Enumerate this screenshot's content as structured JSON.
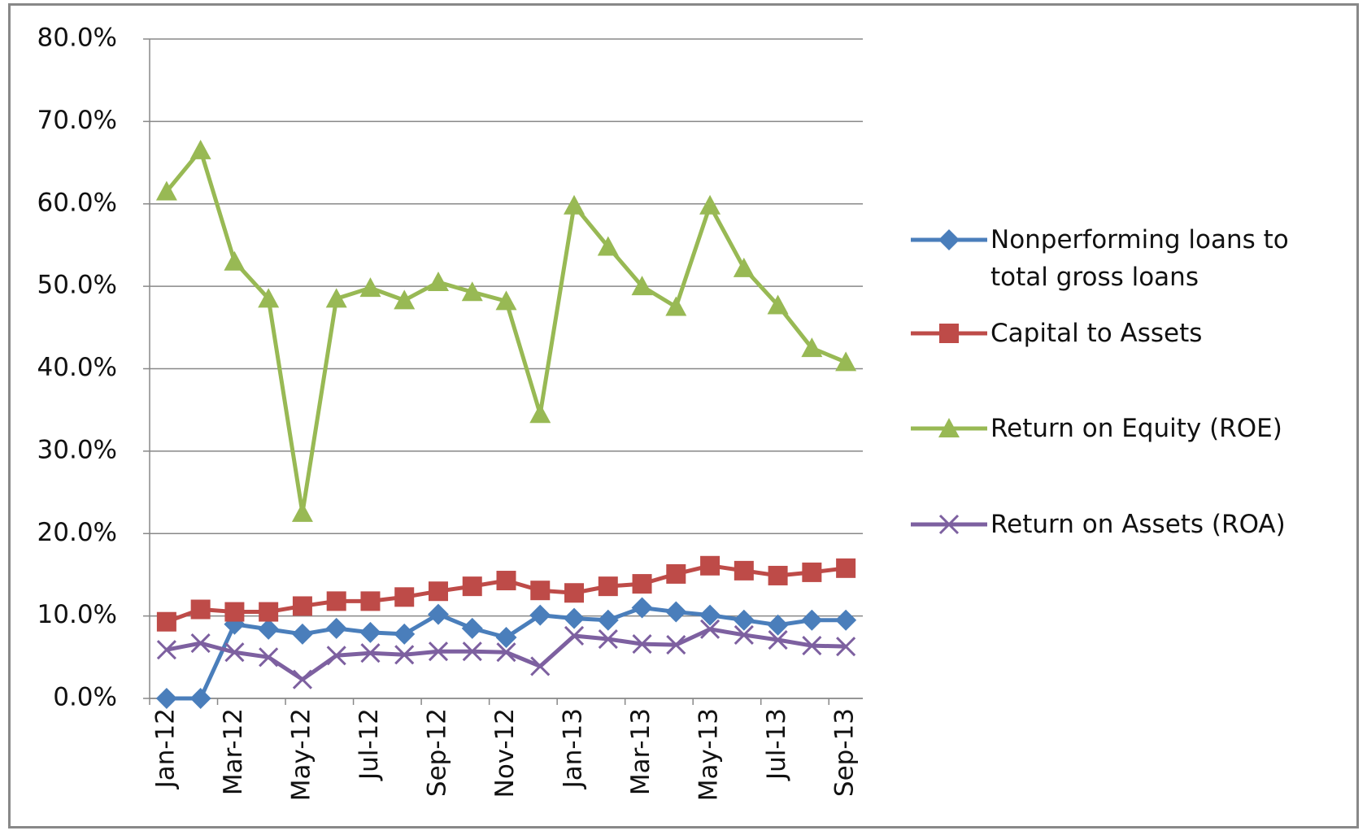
{
  "chart_data": {
    "type": "line",
    "categories": [
      "Jan-12",
      null,
      "Mar-12",
      null,
      "May-12",
      null,
      "Jul-12",
      null,
      "Sep-12",
      null,
      "Nov-12",
      null,
      "Jan-13",
      null,
      "Mar-13",
      null,
      "May-13",
      null,
      "Jul-13",
      null,
      "Sep-13"
    ],
    "series": [
      {
        "name": "Nonperforming loans to total gross loans",
        "color": "#4a7ebb",
        "marker": "diamond",
        "values": [
          0,
          0,
          9.0,
          8.4,
          7.8,
          8.5,
          8.0,
          7.8,
          10.2,
          8.5,
          7.4,
          10.1,
          9.7,
          9.5,
          11.0,
          10.5,
          10.1,
          9.5,
          8.9,
          9.5,
          9.5
        ]
      },
      {
        "name": "Capital to Assets",
        "color": "#be4b48",
        "marker": "square",
        "values": [
          9.3,
          10.8,
          10.5,
          10.5,
          11.2,
          11.8,
          11.8,
          12.3,
          13.0,
          13.6,
          14.3,
          13.1,
          12.8,
          13.6,
          13.9,
          15.1,
          16.1,
          15.5,
          14.9,
          15.3,
          15.8
        ]
      },
      {
        "name": "Return on Equity (ROE)",
        "color": "#98b954",
        "marker": "triangle",
        "values": [
          61.5,
          66.5,
          53.0,
          48.5,
          22.5,
          48.5,
          49.8,
          48.3,
          50.5,
          49.3,
          48.2,
          34.5,
          59.8,
          54.8,
          50.0,
          47.5,
          59.8,
          52.2,
          47.7,
          42.5,
          40.8
        ]
      },
      {
        "name": "Return on Assets (ROA)",
        "color": "#7d60a0",
        "marker": "x",
        "values": [
          5.9,
          6.7,
          5.6,
          5.0,
          2.3,
          5.2,
          5.5,
          5.3,
          5.7,
          5.7,
          5.6,
          3.9,
          7.6,
          7.2,
          6.6,
          6.5,
          8.4,
          7.7,
          7.1,
          6.4,
          6.3
        ]
      }
    ],
    "ylim": [
      0,
      80
    ],
    "yticks": [
      {
        "value": 0,
        "label": "0.0%"
      },
      {
        "value": 10,
        "label": "10.0%"
      },
      {
        "value": 20,
        "label": "20.0%"
      },
      {
        "value": 30,
        "label": "30.0%"
      },
      {
        "value": 40,
        "label": "40.0%"
      },
      {
        "value": 50,
        "label": "50.0%"
      },
      {
        "value": 60,
        "label": "60.0%"
      },
      {
        "value": 70,
        "label": "70.0%"
      },
      {
        "value": 80,
        "label": "80.0%"
      }
    ],
    "grid": true,
    "legend": "right"
  }
}
